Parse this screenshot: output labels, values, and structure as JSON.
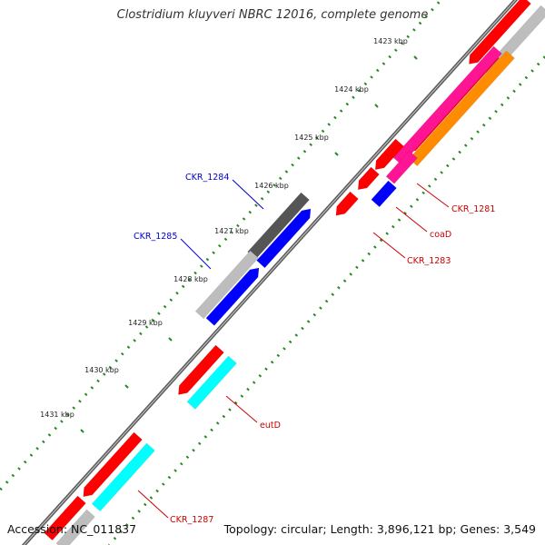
{
  "title": "Clostridium kluyveri NBRC 12016, complete genome",
  "footer": {
    "accession": "Accession: NC_011837",
    "summary": "Topology: circular; Length: 3,896,121 bp; Genes: 3,549"
  },
  "ticks": [
    "1423 kbp",
    "1424 kbp",
    "1425 kbp",
    "1426 kbp",
    "1427 kbp",
    "1428 kbp",
    "1429 kbp",
    "1430 kbp",
    "1431 kbp"
  ],
  "labels": {
    "ckr1284": "CKR_1284",
    "ckr1285": "CKR_1285",
    "ckr1281": "CKR_1281",
    "coaD": "coaD",
    "ckr1283": "CKR_1283",
    "eutD": "eutD",
    "ckr1287": "CKR_1287"
  },
  "colors": {
    "red": "#ff0000",
    "blue": "#0000ff",
    "grey": "#bdbdbd",
    "dark_grey": "#555555",
    "cyan": "#00ffff",
    "pink": "#ff1493",
    "orange": "#ff8c00",
    "tick_green": "#228b22",
    "label_blue": "#0000cc",
    "label_red": "#cc0000"
  }
}
